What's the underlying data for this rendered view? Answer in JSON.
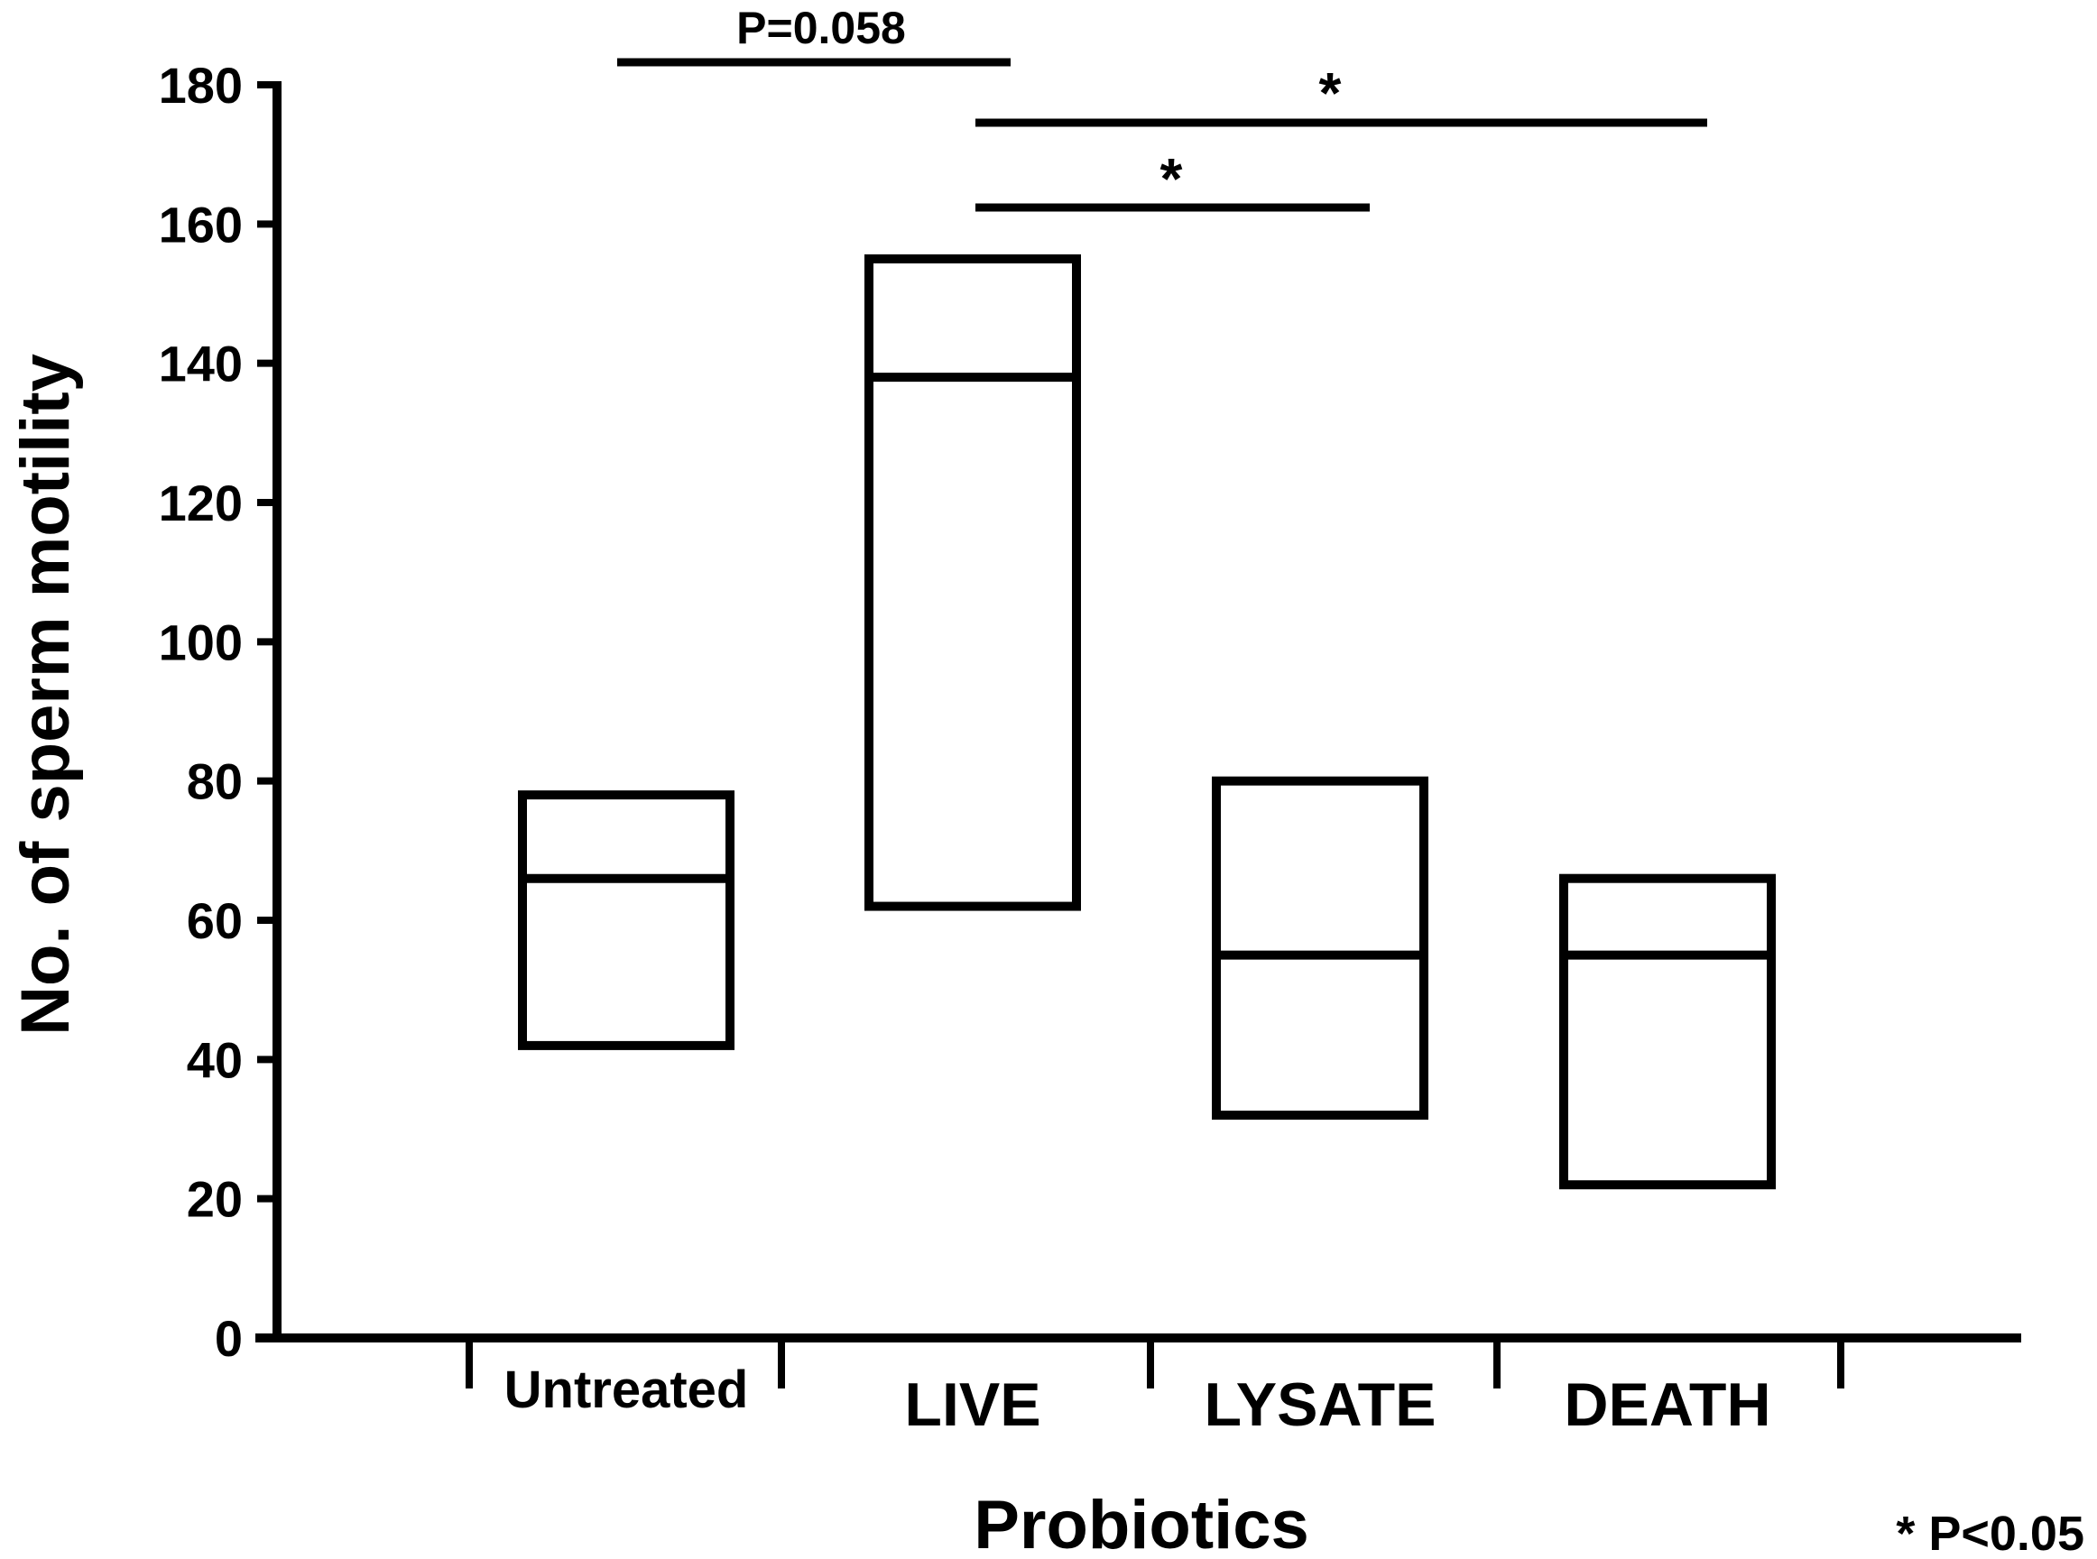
{
  "chart_data": {
    "type": "box",
    "xlabel": "Probiotics",
    "ylabel": "No. of sperm motility",
    "ylim": [
      0,
      180
    ],
    "yticks": [
      0,
      20,
      40,
      60,
      80,
      100,
      120,
      140,
      160,
      180
    ],
    "categories": [
      "Untreated",
      "LIVE",
      "LYSATE",
      "DEATH"
    ],
    "boxes": [
      {
        "category": "Untreated",
        "low": 42,
        "median": 66,
        "high": 78
      },
      {
        "category": "LIVE",
        "low": 62,
        "median": 138,
        "high": 155
      },
      {
        "category": "LYSATE",
        "low": 32,
        "median": 55,
        "high": 80
      },
      {
        "category": "DEATH",
        "low": 22,
        "median": 55,
        "high": 66
      }
    ],
    "comparisons": [
      {
        "from": "Untreated",
        "to": "LIVE",
        "label": "P=0.058"
      },
      {
        "from": "LIVE",
        "to": "DEATH",
        "label": "*"
      },
      {
        "from": "LIVE",
        "to": "LYSATE",
        "label": "*"
      }
    ],
    "footnote": "* P<0.05",
    "grid": false,
    "legend": "none",
    "line_color": "#000000",
    "background_color": "#ffffff"
  }
}
